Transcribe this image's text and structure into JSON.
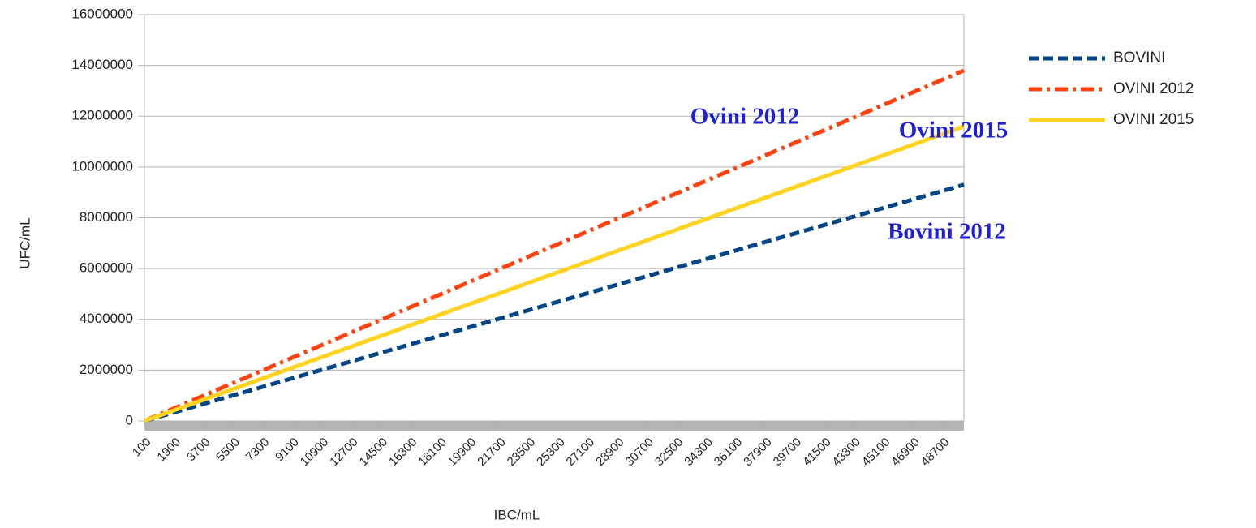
{
  "chart_data": {
    "type": "line",
    "y_label": "UFC/mL",
    "x_label": "IBC/mL",
    "x": [
      100,
      50000
    ],
    "series": [
      {
        "name": "BOVINI",
        "color": "#004586",
        "dash": "dashed",
        "values": [
          0,
          9300000
        ]
      },
      {
        "name": "OVINI 2012",
        "color": "#ff420e",
        "dash": "dashdot",
        "values": [
          0,
          13800000
        ]
      },
      {
        "name": "OVINI 2015",
        "color": "#ffd320",
        "dash": "solid",
        "values": [
          0,
          11600000
        ]
      }
    ],
    "xlim": [
      100,
      50000
    ],
    "xticks": [
      100,
      1900,
      3700,
      5500,
      7300,
      9100,
      10900,
      12700,
      14500,
      16300,
      18100,
      19900,
      21700,
      23500,
      25300,
      27100,
      28900,
      30700,
      32500,
      34300,
      36100,
      37900,
      39700,
      41500,
      43300,
      45100,
      46900,
      48700
    ],
    "ylim": [
      0,
      16000000
    ],
    "yticks": [
      0,
      2000000,
      4000000,
      6000000,
      8000000,
      10000000,
      12000000,
      14000000,
      16000000
    ],
    "grid": true,
    "legend": "right",
    "annotations": [
      {
        "text": "Ovini 2012",
        "series": 1
      },
      {
        "text": "Ovini 2015",
        "series": 2
      },
      {
        "text": "Bovini 2012",
        "series": 0
      }
    ]
  }
}
